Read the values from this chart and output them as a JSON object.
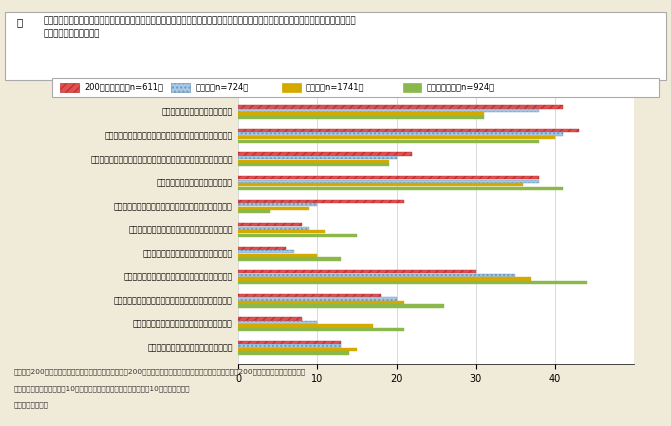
{
  "question_mark": "問",
  "question_text": "あなたがお住まいの地域では、どのような点で災害に対する危険性が高まっている、または今後高まると思いますか。あてはまるものを\nすべてお選びください。",
  "categories": [
    "ゲリラ豪雨などの異常気象の増加",
    "住宅その他の建物の老朽化、耐震不足による災害被害の拡大",
    "道路や橋などの社会資本の老朽化、耐震不足による災害被害の拡大",
    "高齢者などの災害時要援護者の増加",
    "高層マンション・ビルや地下街などの都市構造の高度化",
    "がけ地など災害に脆弱な地域への居住地域の拡大",
    "森林などの不適切な管理による国土の荒廃",
    "高齢化・過疎化などによる地域で助け合う力の低下",
    "予算・人員の縮減などによる行政の災害対応能力の低下",
    "地場産業の衰退などによる災害復旧能力の低下",
    "災害に対する危険性が高まる不安はない"
  ],
  "series_names": [
    "200万人大都市（n=611）",
    "大都市（n=724）",
    "中都市（n=1741）",
    "小都市・町村（n=924）"
  ],
  "series_data": [
    [
      41,
      43,
      22,
      38,
      21,
      8,
      6,
      30,
      18,
      8,
      13
    ],
    [
      38,
      41,
      20,
      38,
      10,
      9,
      7,
      35,
      20,
      10,
      13
    ],
    [
      31,
      40,
      19,
      36,
      9,
      11,
      10,
      37,
      21,
      17,
      15
    ],
    [
      31,
      38,
      19,
      41,
      4,
      15,
      13,
      44,
      26,
      21,
      14
    ]
  ],
  "colors": [
    "#e05050",
    "#a8c8e8",
    "#d4aa00",
    "#8ab84a"
  ],
  "hatches": [
    "////",
    "....",
    "",
    ""
  ],
  "hatch_edgecolors": [
    "#c03030",
    "#7098b8",
    "#d4aa00",
    "#8ab84a"
  ],
  "xlim": [
    0,
    50
  ],
  "xticks": [
    0,
    10,
    20,
    30,
    40
  ],
  "xtick_labels": [
    "0",
    "10",
    "20",
    "30",
    "40"
  ],
  "bg_color": "#f0ead8",
  "plot_bg": "#ffffff",
  "note_line1": "（注）「200万人大都市」とは、東京都区部および人口200万人以上の政令指定都市。「大都市」とは、人口200万人未満の政令指定都市。",
  "note_line2": "　　「中都市」とは、人口10万人以上の市。「小都市」とは、人口10万人未満の市。",
  "note_line3": "資料）国土交通省"
}
